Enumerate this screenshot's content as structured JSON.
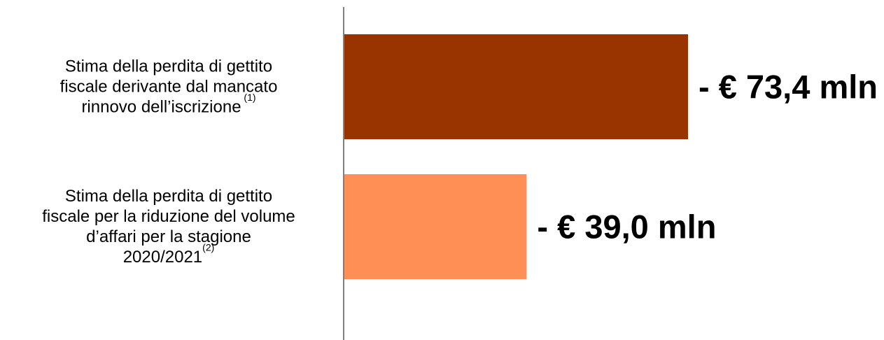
{
  "chart_data": {
    "type": "bar",
    "orientation": "horizontal",
    "categories": [
      {
        "lines": [
          {
            "text": "Stima della perdita di gettito"
          },
          {
            "text": "fiscale derivante dal mancato"
          },
          {
            "text": "rinnovo dell’iscrizione",
            "sup": "(1)"
          }
        ]
      },
      {
        "lines": [
          {
            "text": "Stima della perdita di gettito"
          },
          {
            "text": "fiscale per la riduzione del volume"
          },
          {
            "text": "d’affari per la stagione"
          },
          {
            "text": "2020/2021",
            "sup": "(2)"
          }
        ]
      }
    ],
    "values": [
      -73.4,
      -39.0
    ],
    "value_labels": [
      "- € 73,4 mln",
      "- € 39,0 mln"
    ],
    "colors": [
      "#993300",
      "#FF8F54"
    ],
    "axis_color": "#808080",
    "xlim": [
      0,
      80
    ],
    "grid": false,
    "legend": "none",
    "title": "",
    "xlabel": "",
    "ylabel": ""
  }
}
